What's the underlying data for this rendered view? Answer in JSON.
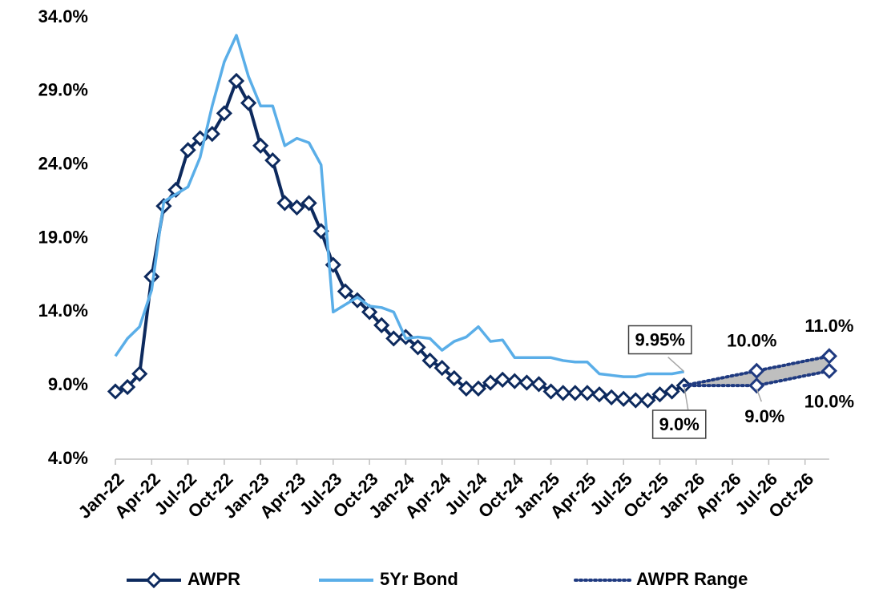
{
  "chart_data": {
    "type": "line",
    "categories": [
      "Jan-22",
      null,
      null,
      "Apr-22",
      null,
      null,
      "Jul-22",
      null,
      null,
      "Oct-22",
      null,
      null,
      "Jan-23",
      null,
      null,
      "Apr-23",
      null,
      null,
      "Jul-23",
      null,
      null,
      "Oct-23",
      null,
      null,
      "Jan-24",
      null,
      null,
      "Apr-24",
      null,
      null,
      "Jul-24",
      null,
      null,
      "Oct-24",
      null,
      null,
      "Jan-25",
      null,
      null,
      "Apr-25",
      null,
      null,
      "Jul-25",
      null,
      null,
      "Oct-25",
      null,
      null,
      "Jan-26",
      null,
      null,
      "Apr-26",
      null,
      null,
      "Jul-26",
      null,
      null,
      "Oct-26",
      null,
      null
    ],
    "series": [
      {
        "name": "AWPR",
        "color": "#0d2a5e",
        "marker": "diamond",
        "values": [
          8.6,
          8.9,
          9.8,
          16.4,
          21.2,
          22.3,
          25.0,
          25.8,
          26.1,
          27.5,
          29.7,
          28.2,
          25.3,
          24.3,
          21.4,
          21.1,
          21.4,
          19.5,
          17.2,
          15.4,
          14.8,
          14.0,
          13.1,
          12.2,
          12.3,
          11.6,
          10.7,
          10.2,
          9.5,
          8.8,
          8.8,
          9.2,
          9.4,
          9.3,
          9.2,
          9.1,
          8.6,
          8.5,
          8.5,
          8.5,
          8.4,
          8.2,
          8.1,
          8.0,
          8.0,
          8.4,
          8.6,
          9.0,
          null,
          null,
          null,
          null,
          null,
          null,
          null,
          null,
          null,
          null,
          null,
          null
        ],
        "value_labels": [
          null,
          null,
          null,
          null,
          null,
          null,
          null,
          null,
          null,
          null,
          null,
          null,
          null,
          null,
          null,
          null,
          null,
          null,
          null,
          null,
          null,
          null,
          null,
          null,
          null,
          null,
          null,
          null,
          null,
          null,
          null,
          null,
          null,
          null,
          null,
          null,
          null,
          null,
          null,
          null,
          null,
          null,
          null,
          null,
          null,
          null,
          null,
          "9.0%",
          null,
          null,
          null,
          null,
          null,
          null,
          null,
          null,
          null,
          null,
          null,
          null
        ]
      },
      {
        "name": "5Yr Bond",
        "color": "#5aaee8",
        "values": [
          11.0,
          12.2,
          13.0,
          15.5,
          21.5,
          22.0,
          22.5,
          24.5,
          28.0,
          31.0,
          32.8,
          30.0,
          28.0,
          28.0,
          25.3,
          25.8,
          25.5,
          24.0,
          14.0,
          14.5,
          15.0,
          14.4,
          14.3,
          14.0,
          12.2,
          12.3,
          12.2,
          11.4,
          12.0,
          12.3,
          13.0,
          12.0,
          12.1,
          10.9,
          10.9,
          10.9,
          10.9,
          10.7,
          10.6,
          10.6,
          9.8,
          9.7,
          9.6,
          9.6,
          9.8,
          9.8,
          9.8,
          9.95,
          null,
          null,
          null,
          null,
          null,
          null,
          null,
          null,
          null,
          null,
          null,
          null
        ],
        "value_labels": [
          null,
          null,
          null,
          null,
          null,
          null,
          null,
          null,
          null,
          null,
          null,
          null,
          null,
          null,
          null,
          null,
          null,
          null,
          null,
          null,
          null,
          null,
          null,
          null,
          null,
          null,
          null,
          null,
          null,
          null,
          null,
          null,
          null,
          null,
          null,
          null,
          null,
          null,
          null,
          null,
          null,
          null,
          null,
          null,
          null,
          null,
          null,
          "9.95%",
          null,
          null,
          null,
          null,
          null,
          null,
          null,
          null,
          null,
          null,
          null,
          null
        ]
      },
      {
        "name": "AWPR Range",
        "color": "#1f3a80",
        "fill": "#bfbfbf",
        "dotted": true,
        "upper": [
          null,
          null,
          null,
          null,
          null,
          null,
          null,
          null,
          null,
          null,
          null,
          null,
          null,
          null,
          null,
          null,
          null,
          null,
          null,
          null,
          null,
          null,
          null,
          null,
          null,
          null,
          null,
          null,
          null,
          null,
          null,
          null,
          null,
          null,
          null,
          null,
          null,
          null,
          null,
          null,
          null,
          null,
          null,
          null,
          null,
          null,
          null,
          9.0,
          9.17,
          9.33,
          9.5,
          9.67,
          9.83,
          10.0,
          10.17,
          10.33,
          10.5,
          10.67,
          10.83,
          11.0
        ],
        "upper_labels": [
          null,
          null,
          null,
          null,
          null,
          null,
          null,
          null,
          null,
          null,
          null,
          null,
          null,
          null,
          null,
          null,
          null,
          null,
          null,
          null,
          null,
          null,
          null,
          null,
          null,
          null,
          null,
          null,
          null,
          null,
          null,
          null,
          null,
          null,
          null,
          null,
          null,
          null,
          null,
          null,
          null,
          null,
          null,
          null,
          null,
          null,
          null,
          null,
          null,
          null,
          null,
          null,
          null,
          "10.0%",
          null,
          null,
          null,
          null,
          null,
          "11.0%"
        ],
        "lower": [
          null,
          null,
          null,
          null,
          null,
          null,
          null,
          null,
          null,
          null,
          null,
          null,
          null,
          null,
          null,
          null,
          null,
          null,
          null,
          null,
          null,
          null,
          null,
          null,
          null,
          null,
          null,
          null,
          null,
          null,
          null,
          null,
          null,
          null,
          null,
          null,
          null,
          null,
          null,
          null,
          null,
          null,
          null,
          null,
          null,
          null,
          null,
          9.0,
          9.0,
          9.0,
          9.0,
          9.0,
          9.0,
          9.0,
          9.17,
          9.33,
          9.5,
          9.67,
          9.83,
          10.0
        ],
        "lower_labels": [
          null,
          null,
          null,
          null,
          null,
          null,
          null,
          null,
          null,
          null,
          null,
          null,
          null,
          null,
          null,
          null,
          null,
          null,
          null,
          null,
          null,
          null,
          null,
          null,
          null,
          null,
          null,
          null,
          null,
          null,
          null,
          null,
          null,
          null,
          null,
          null,
          null,
          null,
          null,
          null,
          null,
          null,
          null,
          null,
          null,
          null,
          null,
          null,
          null,
          null,
          null,
          null,
          null,
          "9.0%",
          null,
          null,
          null,
          null,
          null,
          "10.0%"
        ]
      }
    ],
    "ylim": [
      4,
      34
    ],
    "yticks": [
      {
        "value": 4,
        "label": "4.0%"
      },
      {
        "value": 9,
        "label": "9.0%"
      },
      {
        "value": 14,
        "label": "14.0%"
      },
      {
        "value": 19,
        "label": "19.0%"
      },
      {
        "value": 24,
        "label": "24.0%"
      },
      {
        "value": 29,
        "label": "29.0%"
      },
      {
        "value": 34,
        "label": "34.0%"
      }
    ],
    "grid": false,
    "legend": "bottom"
  }
}
